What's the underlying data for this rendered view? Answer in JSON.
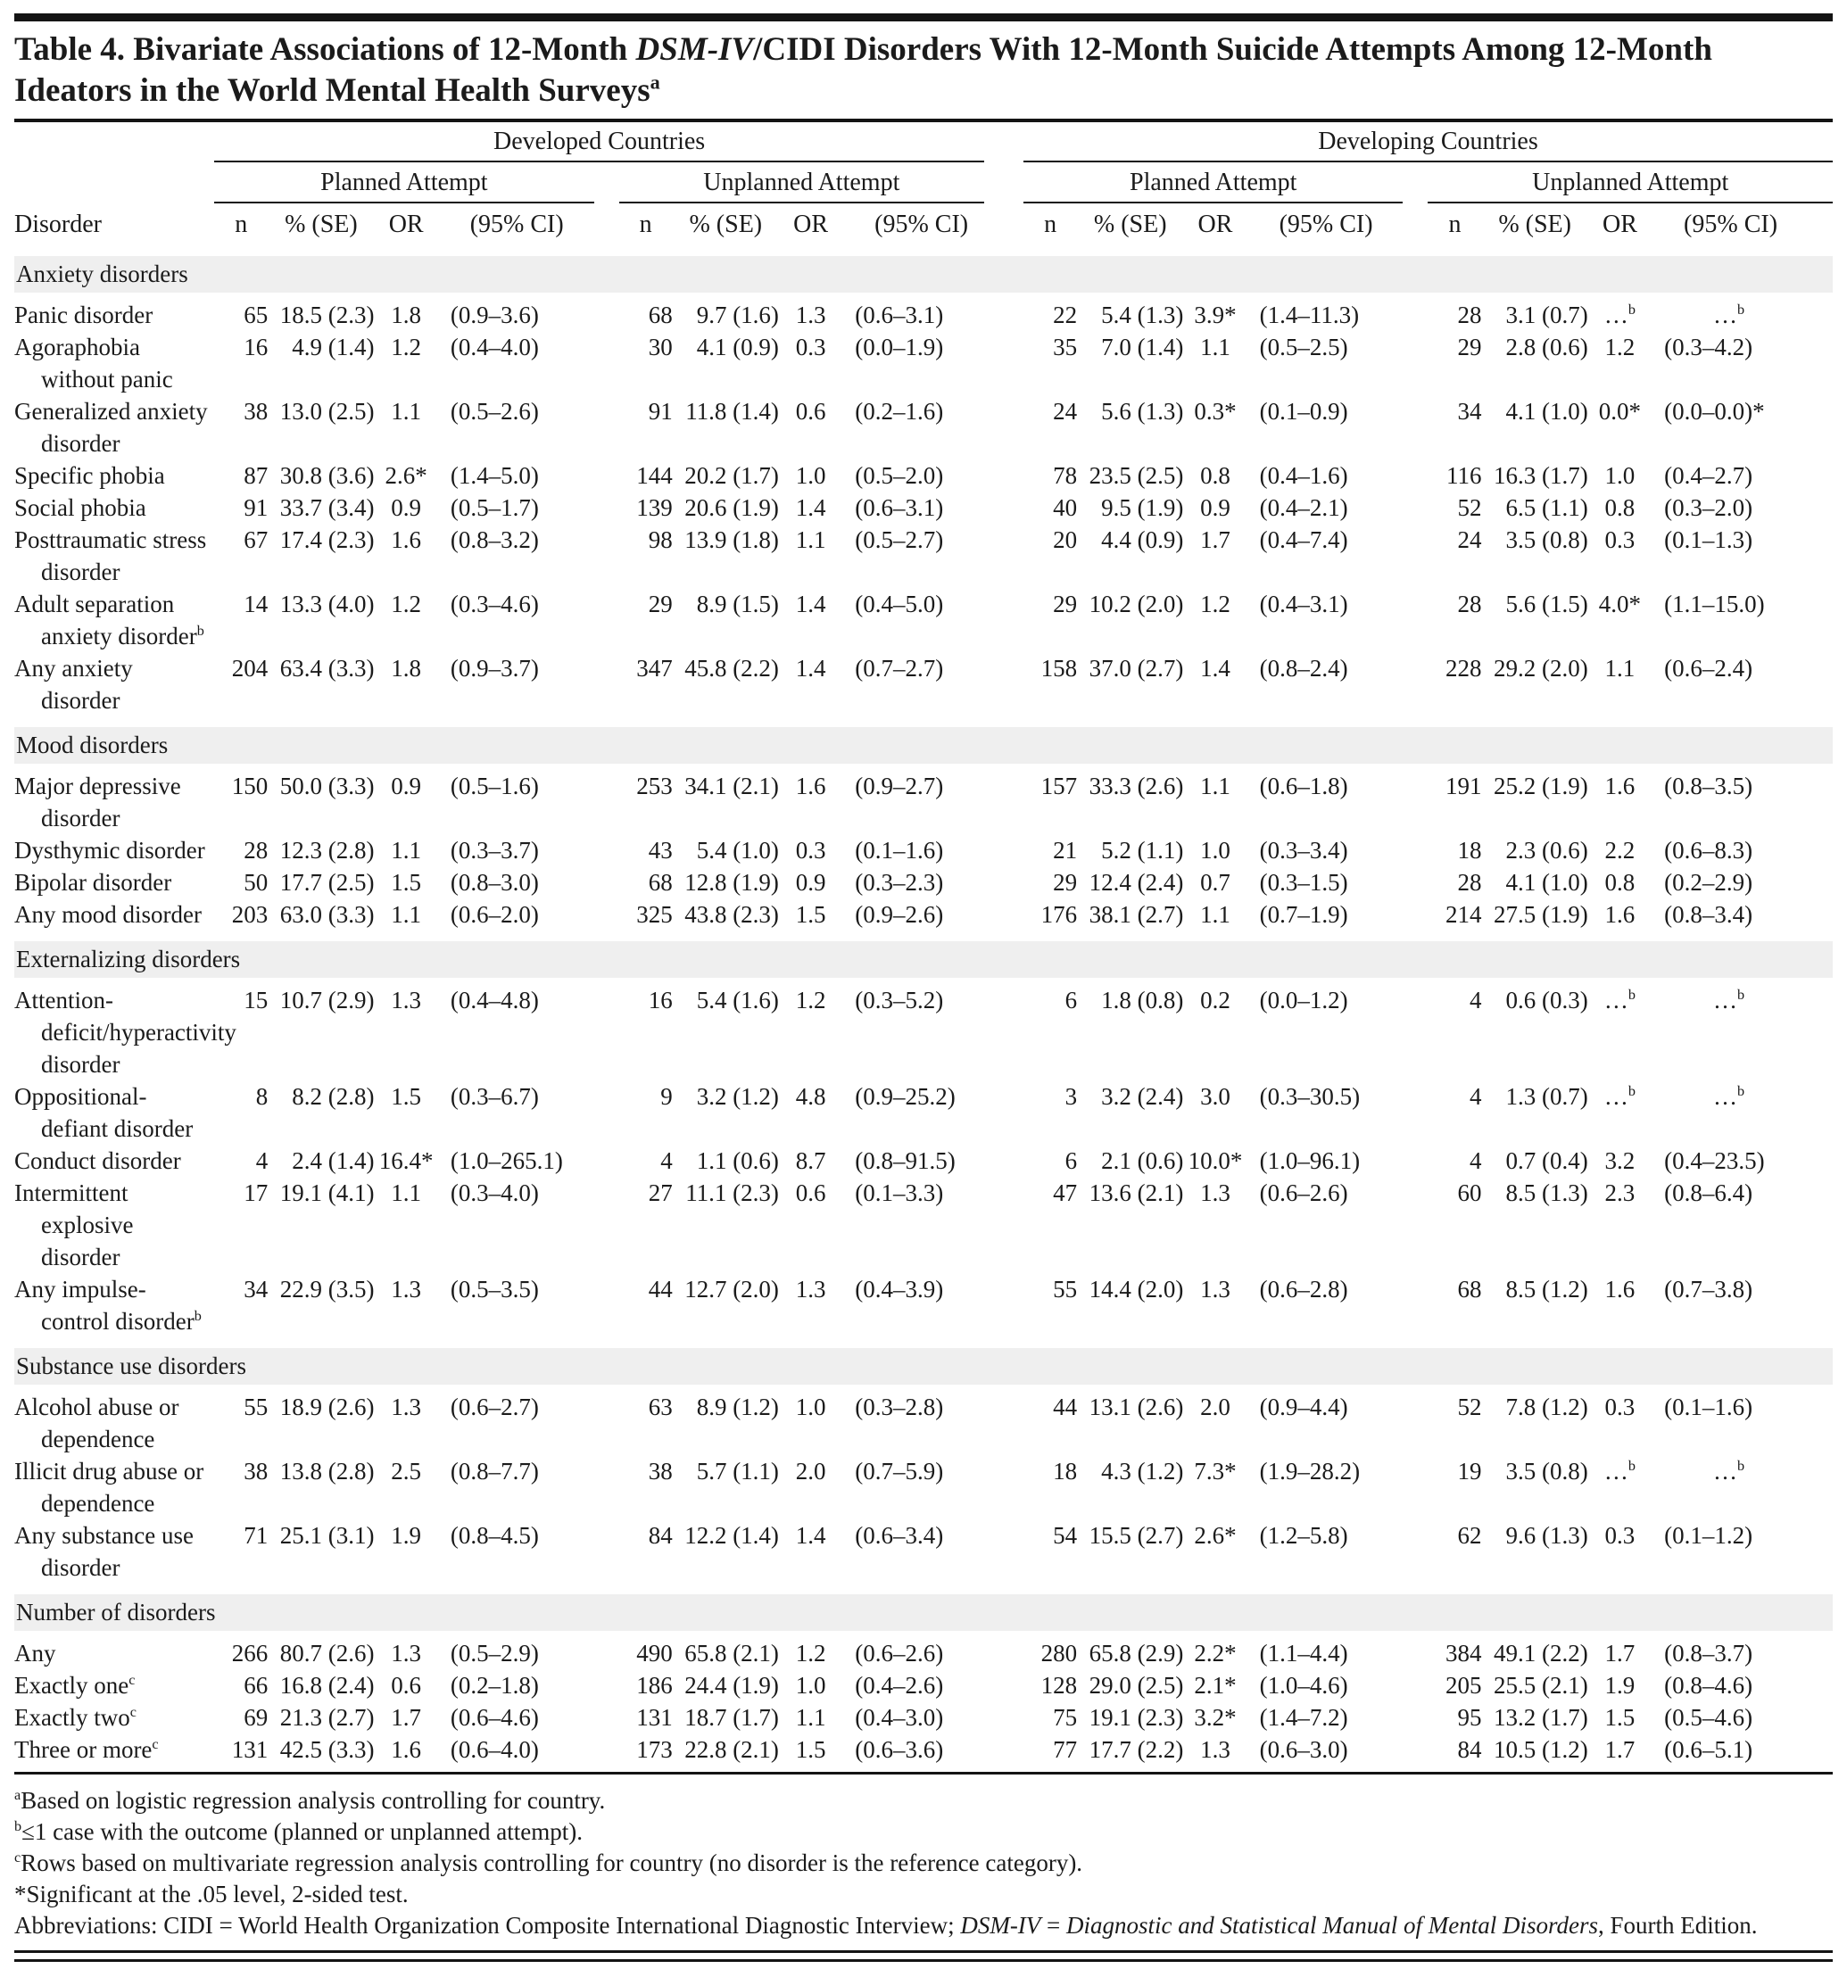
{
  "title": {
    "part1": "Table 4. Bivariate Associations of 12-Month ",
    "italic": "DSM-IV",
    "part2": "/CIDI Disorders With 12-Month Suicide Attempts Among 12-Month Ideators in the World Mental Health Surveys",
    "sup": "a"
  },
  "header": {
    "disorder_col": "Disorder",
    "country_groups": [
      "Developed Countries",
      "Developing Countries"
    ],
    "attempt_groups": [
      "Planned Attempt",
      "Unplanned Attempt",
      "Planned Attempt",
      "Unplanned Attempt"
    ],
    "stat_cols": [
      "n",
      "% (SE)",
      "OR",
      "(95% CI)"
    ]
  },
  "sections": [
    {
      "label": "Anxiety disorders",
      "rows": [
        {
          "label": "Panic disorder",
          "sup": "",
          "cells": [
            "65",
            "18.5 (2.3)",
            "1.8",
            "(0.9–3.6)",
            "68",
            "9.7 (1.6)",
            "1.3",
            "(0.6–3.1)",
            "22",
            "5.4 (1.3)",
            "3.9*",
            "(1.4–11.3)",
            "28",
            "3.1 (0.7)",
            "…^b",
            "…^b"
          ]
        },
        {
          "label": "Agoraphobia without panic",
          "sup": "",
          "cells": [
            "16",
            "4.9 (1.4)",
            "1.2",
            "(0.4–4.0)",
            "30",
            "4.1 (0.9)",
            "0.3",
            "(0.0–1.9)",
            "35",
            "7.0 (1.4)",
            "1.1",
            "(0.5–2.5)",
            "29",
            "2.8 (0.6)",
            "1.2",
            "(0.3–4.2)"
          ]
        },
        {
          "label": "Generalized anxiety disorder",
          "sup": "",
          "cells": [
            "38",
            "13.0 (2.5)",
            "1.1",
            "(0.5–2.6)",
            "91",
            "11.8 (1.4)",
            "0.6",
            "(0.2–1.6)",
            "24",
            "5.6 (1.3)",
            "0.3*",
            "(0.1–0.9)",
            "34",
            "4.1 (1.0)",
            "0.0*",
            "(0.0–0.0)*"
          ]
        },
        {
          "label": "Specific phobia",
          "sup": "",
          "cells": [
            "87",
            "30.8 (3.6)",
            "2.6*",
            "(1.4–5.0)",
            "144",
            "20.2 (1.7)",
            "1.0",
            "(0.5–2.0)",
            "78",
            "23.5 (2.5)",
            "0.8",
            "(0.4–1.6)",
            "116",
            "16.3 (1.7)",
            "1.0",
            "(0.4–2.7)"
          ]
        },
        {
          "label": "Social phobia",
          "sup": "",
          "cells": [
            "91",
            "33.7 (3.4)",
            "0.9",
            "(0.5–1.7)",
            "139",
            "20.6 (1.9)",
            "1.4",
            "(0.6–3.1)",
            "40",
            "9.5 (1.9)",
            "0.9",
            "(0.4–2.1)",
            "52",
            "6.5 (1.1)",
            "0.8",
            "(0.3–2.0)"
          ]
        },
        {
          "label": "Posttraumatic stress disorder",
          "sup": "",
          "cells": [
            "67",
            "17.4 (2.3)",
            "1.6",
            "(0.8–3.2)",
            "98",
            "13.9 (1.8)",
            "1.1",
            "(0.5–2.7)",
            "20",
            "4.4 (0.9)",
            "1.7",
            "(0.4–7.4)",
            "24",
            "3.5 (0.8)",
            "0.3",
            "(0.1–1.3)"
          ]
        },
        {
          "label": "Adult separation anxiety disorder",
          "sup": "b",
          "cells": [
            "14",
            "13.3 (4.0)",
            "1.2",
            "(0.3–4.6)",
            "29",
            "8.9 (1.5)",
            "1.4",
            "(0.4–5.0)",
            "29",
            "10.2 (2.0)",
            "1.2",
            "(0.4–3.1)",
            "28",
            "5.6 (1.5)",
            "4.0*",
            "(1.1–15.0)"
          ]
        },
        {
          "label": "Any anxiety disorder",
          "sup": "",
          "cells": [
            "204",
            "63.4 (3.3)",
            "1.8",
            "(0.9–3.7)",
            "347",
            "45.8 (2.2)",
            "1.4",
            "(0.7–2.7)",
            "158",
            "37.0 (2.7)",
            "1.4",
            "(0.8–2.4)",
            "228",
            "29.2 (2.0)",
            "1.1",
            "(0.6–2.4)"
          ]
        }
      ]
    },
    {
      "label": "Mood disorders",
      "rows": [
        {
          "label": "Major depressive disorder",
          "sup": "",
          "cells": [
            "150",
            "50.0 (3.3)",
            "0.9",
            "(0.5–1.6)",
            "253",
            "34.1 (2.1)",
            "1.6",
            "(0.9–2.7)",
            "157",
            "33.3 (2.6)",
            "1.1",
            "(0.6–1.8)",
            "191",
            "25.2 (1.9)",
            "1.6",
            "(0.8–3.5)"
          ]
        },
        {
          "label": "Dysthymic disorder",
          "sup": "",
          "cells": [
            "28",
            "12.3 (2.8)",
            "1.1",
            "(0.3–3.7)",
            "43",
            "5.4 (1.0)",
            "0.3",
            "(0.1–1.6)",
            "21",
            "5.2 (1.1)",
            "1.0",
            "(0.3–3.4)",
            "18",
            "2.3 (0.6)",
            "2.2",
            "(0.6–8.3)"
          ]
        },
        {
          "label": "Bipolar disorder",
          "sup": "",
          "cells": [
            "50",
            "17.7 (2.5)",
            "1.5",
            "(0.8–3.0)",
            "68",
            "12.8 (1.9)",
            "0.9",
            "(0.3–2.3)",
            "29",
            "12.4 (2.4)",
            "0.7",
            "(0.3–1.5)",
            "28",
            "4.1 (1.0)",
            "0.8",
            "(0.2–2.9)"
          ]
        },
        {
          "label": "Any mood disorder",
          "sup": "",
          "cells": [
            "203",
            "63.0 (3.3)",
            "1.1",
            "(0.6–2.0)",
            "325",
            "43.8 (2.3)",
            "1.5",
            "(0.9–2.6)",
            "176",
            "38.1 (2.7)",
            "1.1",
            "(0.7–1.9)",
            "214",
            "27.5 (1.9)",
            "1.6",
            "(0.8–3.4)"
          ]
        }
      ]
    },
    {
      "label": "Externalizing disorders",
      "rows": [
        {
          "label": "Attention-deficit/hyperactivity disorder",
          "sup": "",
          "cells": [
            "15",
            "10.7 (2.9)",
            "1.3",
            "(0.4–4.8)",
            "16",
            "5.4 (1.6)",
            "1.2",
            "(0.3–5.2)",
            "6",
            "1.8 (0.8)",
            "0.2",
            "(0.0–1.2)",
            "4",
            "0.6 (0.3)",
            "…^b",
            "…^b"
          ]
        },
        {
          "label": "Oppositional-defiant disorder",
          "sup": "",
          "cells": [
            "8",
            "8.2 (2.8)",
            "1.5",
            "(0.3–6.7)",
            "9",
            "3.2 (1.2)",
            "4.8",
            "(0.9–25.2)",
            "3",
            "3.2 (2.4)",
            "3.0",
            "(0.3–30.5)",
            "4",
            "1.3 (0.7)",
            "…^b",
            "…^b"
          ]
        },
        {
          "label": "Conduct disorder",
          "sup": "",
          "cells": [
            "4",
            "2.4 (1.4)",
            "16.4*",
            "(1.0–265.1)",
            "4",
            "1.1 (0.6)",
            "8.7",
            "(0.8–91.5)",
            "6",
            "2.1 (0.6)",
            "10.0*",
            "(1.0–96.1)",
            "4",
            "0.7 (0.4)",
            "3.2",
            "(0.4–23.5)"
          ]
        },
        {
          "label": "Intermittent explosive disorder",
          "sup": "",
          "cells": [
            "17",
            "19.1 (4.1)",
            "1.1",
            "(0.3–4.0)",
            "27",
            "11.1 (2.3)",
            "0.6",
            "(0.1–3.3)",
            "47",
            "13.6 (2.1)",
            "1.3",
            "(0.6–2.6)",
            "60",
            "8.5 (1.3)",
            "2.3",
            "(0.8–6.4)"
          ]
        },
        {
          "label": "Any impulse-control disorder",
          "sup": "b",
          "cells": [
            "34",
            "22.9 (3.5)",
            "1.3",
            "(0.5–3.5)",
            "44",
            "12.7 (2.0)",
            "1.3",
            "(0.4–3.9)",
            "55",
            "14.4 (2.0)",
            "1.3",
            "(0.6–2.8)",
            "68",
            "8.5 (1.2)",
            "1.6",
            "(0.7–3.8)"
          ]
        }
      ]
    },
    {
      "label": "Substance use disorders",
      "rows": [
        {
          "label": "Alcohol abuse or dependence",
          "sup": "",
          "cells": [
            "55",
            "18.9 (2.6)",
            "1.3",
            "(0.6–2.7)",
            "63",
            "8.9 (1.2)",
            "1.0",
            "(0.3–2.8)",
            "44",
            "13.1 (2.6)",
            "2.0",
            "(0.9–4.4)",
            "52",
            "7.8 (1.2)",
            "0.3",
            "(0.1–1.6)"
          ]
        },
        {
          "label": "Illicit drug abuse or dependence",
          "sup": "",
          "cells": [
            "38",
            "13.8 (2.8)",
            "2.5",
            "(0.8–7.7)",
            "38",
            "5.7 (1.1)",
            "2.0",
            "(0.7–5.9)",
            "18",
            "4.3 (1.2)",
            "7.3*",
            "(1.9–28.2)",
            "19",
            "3.5 (0.8)",
            "…^b",
            "…^b"
          ]
        },
        {
          "label": "Any substance use disorder",
          "sup": "",
          "cells": [
            "71",
            "25.1 (3.1)",
            "1.9",
            "(0.8–4.5)",
            "84",
            "12.2 (1.4)",
            "1.4",
            "(0.6–3.4)",
            "54",
            "15.5 (2.7)",
            "2.6*",
            "(1.2–5.8)",
            "62",
            "9.6 (1.3)",
            "0.3",
            "(0.1–1.2)"
          ]
        }
      ]
    },
    {
      "label": "Number of disorders",
      "rows": [
        {
          "label": "Any",
          "sup": "",
          "cells": [
            "266",
            "80.7 (2.6)",
            "1.3",
            "(0.5–2.9)",
            "490",
            "65.8 (2.1)",
            "1.2",
            "(0.6–2.6)",
            "280",
            "65.8 (2.9)",
            "2.2*",
            "(1.1–4.4)",
            "384",
            "49.1 (2.2)",
            "1.7",
            "(0.8–3.7)"
          ]
        },
        {
          "label": "Exactly one",
          "sup": "c",
          "cells": [
            "66",
            "16.8 (2.4)",
            "0.6",
            "(0.2–1.8)",
            "186",
            "24.4 (1.9)",
            "1.0",
            "(0.4–2.6)",
            "128",
            "29.0 (2.5)",
            "2.1*",
            "(1.0–4.6)",
            "205",
            "25.5 (2.1)",
            "1.9",
            "(0.8–4.6)"
          ]
        },
        {
          "label": "Exactly two",
          "sup": "c",
          "cells": [
            "69",
            "21.3 (2.7)",
            "1.7",
            "(0.6–4.6)",
            "131",
            "18.7 (1.7)",
            "1.1",
            "(0.4–3.0)",
            "75",
            "19.1 (2.3)",
            "3.2*",
            "(1.4–7.2)",
            "95",
            "13.2 (1.7)",
            "1.5",
            "(0.5–4.6)"
          ]
        },
        {
          "label": "Three or more",
          "sup": "c",
          "cells": [
            "131",
            "42.5 (3.3)",
            "1.6",
            "(0.6–4.0)",
            "173",
            "22.8 (2.1)",
            "1.5",
            "(0.6–3.6)",
            "77",
            "17.7 (2.2)",
            "1.3",
            "(0.6–3.0)",
            "84",
            "10.5 (1.2)",
            "1.7",
            "(0.6–5.1)"
          ]
        }
      ]
    }
  ],
  "footnotes": [
    {
      "sup": "a",
      "segments": [
        {
          "text": "Based on logistic regression analysis controlling for country."
        }
      ]
    },
    {
      "sup": "b",
      "segments": [
        {
          "text": "≤1 case with the outcome (planned or unplanned attempt)."
        }
      ]
    },
    {
      "sup": "c",
      "segments": [
        {
          "text": "Rows based on multivariate regression analysis controlling for country (no disorder is the reference category)."
        }
      ]
    },
    {
      "sup": "",
      "segments": [
        {
          "text": "*Significant at the .05 level, 2-sided test."
        }
      ]
    },
    {
      "sup": "",
      "segments": [
        {
          "text": "Abbreviations: CIDI = World Health Organization Composite International Diagnostic Interview; "
        },
        {
          "text": "DSM-IV",
          "italic": true
        },
        {
          "text": " = "
        },
        {
          "text": "Diagnostic and Statistical Manual of Mental Disorders",
          "italic": true
        },
        {
          "text": ", Fourth Edition."
        }
      ]
    }
  ],
  "colors": {
    "band": "#efefef",
    "rule": "#141414"
  }
}
